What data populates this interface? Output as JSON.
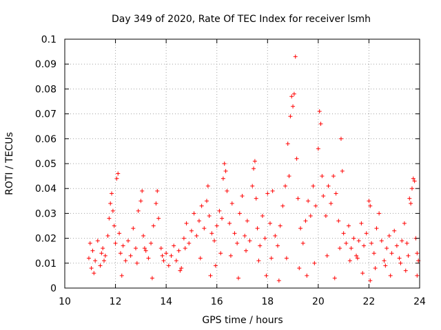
{
  "chart_data": {
    "type": "scatter",
    "title": "Day 349 of 2020, Rate Of TEC Index for receiver lsmh",
    "xlabel": "GPS time / hours",
    "ylabel": "ROTI / TECUs",
    "xlim": [
      10,
      24
    ],
    "ylim": [
      0,
      0.1
    ],
    "xticks": [
      "10",
      "12",
      "14",
      "16",
      "18",
      "20",
      "22",
      "24"
    ],
    "yticks": [
      "0",
      "0.01",
      "0.02",
      "0.03",
      "0.04",
      "0.05",
      "0.06",
      "0.07",
      "0.08",
      "0.09",
      "0.1"
    ],
    "grid": true,
    "marker": "+",
    "series_color": "#ff0000",
    "series": [
      {
        "name": "ROTI",
        "points": [
          [
            10.95,
            0.012
          ],
          [
            11.0,
            0.018
          ],
          [
            11.05,
            0.008
          ],
          [
            11.1,
            0.015
          ],
          [
            11.2,
            0.011
          ],
          [
            11.3,
            0.019
          ],
          [
            11.4,
            0.009
          ],
          [
            11.5,
            0.016
          ],
          [
            11.6,
            0.013
          ],
          [
            11.7,
            0.021
          ],
          [
            11.75,
            0.028
          ],
          [
            11.8,
            0.034
          ],
          [
            11.85,
            0.038
          ],
          [
            11.9,
            0.031
          ],
          [
            11.95,
            0.025
          ],
          [
            12.0,
            0.018
          ],
          [
            12.05,
            0.044
          ],
          [
            12.1,
            0.046
          ],
          [
            12.15,
            0.022
          ],
          [
            12.2,
            0.014
          ],
          [
            12.3,
            0.017
          ],
          [
            12.4,
            0.011
          ],
          [
            12.5,
            0.019
          ],
          [
            12.6,
            0.013
          ],
          [
            12.7,
            0.024
          ],
          [
            12.8,
            0.016
          ],
          [
            12.9,
            0.031
          ],
          [
            13.0,
            0.035
          ],
          [
            13.05,
            0.039
          ],
          [
            13.1,
            0.021
          ],
          [
            13.2,
            0.015
          ],
          [
            13.3,
            0.012
          ],
          [
            13.4,
            0.018
          ],
          [
            13.5,
            0.025
          ],
          [
            13.6,
            0.034
          ],
          [
            13.65,
            0.039
          ],
          [
            13.7,
            0.028
          ],
          [
            13.8,
            0.016
          ],
          [
            13.9,
            0.011
          ],
          [
            14.0,
            0.014
          ],
          [
            14.1,
            0.009
          ],
          [
            14.2,
            0.013
          ],
          [
            14.3,
            0.017
          ],
          [
            14.4,
            0.011
          ],
          [
            14.5,
            0.015
          ],
          [
            14.6,
            0.008
          ],
          [
            14.7,
            0.02
          ],
          [
            14.8,
            0.026
          ],
          [
            14.9,
            0.018
          ],
          [
            15.0,
            0.023
          ],
          [
            15.1,
            0.03
          ],
          [
            15.2,
            0.021
          ],
          [
            15.3,
            0.027
          ],
          [
            15.4,
            0.033
          ],
          [
            15.5,
            0.024
          ],
          [
            15.6,
            0.035
          ],
          [
            15.65,
            0.041
          ],
          [
            15.7,
            0.029
          ],
          [
            15.8,
            0.022
          ],
          [
            15.9,
            0.019
          ],
          [
            16.0,
            0.025
          ],
          [
            16.1,
            0.031
          ],
          [
            16.2,
            0.028
          ],
          [
            16.25,
            0.044
          ],
          [
            16.3,
            0.05
          ],
          [
            16.35,
            0.047
          ],
          [
            16.4,
            0.039
          ],
          [
            16.5,
            0.026
          ],
          [
            16.6,
            0.034
          ],
          [
            16.7,
            0.022
          ],
          [
            16.8,
            0.018
          ],
          [
            16.9,
            0.03
          ],
          [
            17.0,
            0.037
          ],
          [
            17.1,
            0.021
          ],
          [
            17.2,
            0.027
          ],
          [
            17.3,
            0.019
          ],
          [
            17.4,
            0.041
          ],
          [
            17.45,
            0.048
          ],
          [
            17.5,
            0.051
          ],
          [
            17.55,
            0.036
          ],
          [
            17.6,
            0.024
          ],
          [
            17.7,
            0.017
          ],
          [
            17.8,
            0.029
          ],
          [
            17.9,
            0.02
          ],
          [
            18.0,
            0.038
          ],
          [
            18.1,
            0.026
          ],
          [
            18.2,
            0.039
          ],
          [
            18.3,
            0.021
          ],
          [
            18.4,
            0.017
          ],
          [
            18.5,
            0.025
          ],
          [
            18.6,
            0.033
          ],
          [
            18.7,
            0.041
          ],
          [
            18.8,
            0.058
          ],
          [
            18.85,
            0.045
          ],
          [
            18.9,
            0.069
          ],
          [
            18.95,
            0.077
          ],
          [
            19.0,
            0.073
          ],
          [
            19.05,
            0.078
          ],
          [
            19.1,
            0.093
          ],
          [
            19.15,
            0.052
          ],
          [
            19.2,
            0.036
          ],
          [
            19.3,
            0.024
          ],
          [
            19.4,
            0.018
          ],
          [
            19.5,
            0.027
          ],
          [
            19.6,
            0.035
          ],
          [
            19.7,
            0.029
          ],
          [
            19.8,
            0.041
          ],
          [
            19.9,
            0.033
          ],
          [
            20.0,
            0.056
          ],
          [
            20.05,
            0.071
          ],
          [
            20.1,
            0.066
          ],
          [
            20.15,
            0.045
          ],
          [
            20.2,
            0.037
          ],
          [
            20.3,
            0.029
          ],
          [
            20.4,
            0.041
          ],
          [
            20.5,
            0.034
          ],
          [
            20.6,
            0.045
          ],
          [
            20.7,
            0.038
          ],
          [
            20.8,
            0.027
          ],
          [
            20.9,
            0.06
          ],
          [
            20.95,
            0.047
          ],
          [
            21.0,
            0.022
          ],
          [
            21.1,
            0.018
          ],
          [
            21.2,
            0.025
          ],
          [
            21.3,
            0.016
          ],
          [
            21.4,
            0.02
          ],
          [
            21.5,
            0.013
          ],
          [
            21.6,
            0.019
          ],
          [
            21.7,
            0.026
          ],
          [
            21.8,
            0.017
          ],
          [
            21.9,
            0.022
          ],
          [
            22.0,
            0.035
          ],
          [
            22.05,
            0.033
          ],
          [
            22.1,
            0.018
          ],
          [
            22.2,
            0.014
          ],
          [
            22.3,
            0.024
          ],
          [
            22.4,
            0.03
          ],
          [
            22.5,
            0.019
          ],
          [
            22.6,
            0.011
          ],
          [
            22.7,
            0.016
          ],
          [
            22.8,
            0.021
          ],
          [
            22.9,
            0.014
          ],
          [
            23.0,
            0.023
          ],
          [
            23.1,
            0.017
          ],
          [
            23.2,
            0.012
          ],
          [
            23.3,
            0.019
          ],
          [
            23.4,
            0.026
          ],
          [
            23.5,
            0.018
          ],
          [
            23.6,
            0.036
          ],
          [
            23.65,
            0.034
          ],
          [
            23.7,
            0.04
          ],
          [
            23.75,
            0.044
          ],
          [
            23.8,
            0.043
          ],
          [
            23.85,
            0.02
          ],
          [
            23.9,
            0.014
          ],
          [
            23.95,
            0.011
          ],
          [
            11.15,
            0.006
          ],
          [
            12.25,
            0.005
          ],
          [
            13.45,
            0.004
          ],
          [
            14.55,
            0.007
          ],
          [
            15.75,
            0.005
          ],
          [
            16.85,
            0.004
          ],
          [
            17.95,
            0.005
          ],
          [
            18.45,
            0.003
          ],
          [
            19.55,
            0.005
          ],
          [
            20.65,
            0.004
          ],
          [
            21.75,
            0.006
          ],
          [
            22.05,
            0.003
          ],
          [
            22.85,
            0.005
          ],
          [
            23.45,
            0.007
          ],
          [
            23.9,
            0.005
          ],
          [
            14.75,
            0.016
          ],
          [
            16.55,
            0.013
          ],
          [
            18.15,
            0.012
          ],
          [
            19.85,
            0.01
          ],
          [
            21.25,
            0.011
          ],
          [
            22.65,
            0.009
          ],
          [
            12.85,
            0.01
          ],
          [
            15.35,
            0.012
          ],
          [
            17.65,
            0.011
          ],
          [
            20.35,
            0.013
          ],
          [
            11.55,
            0.011
          ],
          [
            13.85,
            0.013
          ],
          [
            16.15,
            0.014
          ],
          [
            18.75,
            0.012
          ],
          [
            21.55,
            0.012
          ],
          [
            23.25,
            0.01
          ],
          [
            15.95,
            0.009
          ],
          [
            19.25,
            0.008
          ],
          [
            22.25,
            0.008
          ],
          [
            11.45,
            0.014
          ],
          [
            13.15,
            0.016
          ],
          [
            17.15,
            0.015
          ],
          [
            20.85,
            0.016
          ],
          [
            23.55,
            0.013
          ]
        ]
      }
    ]
  }
}
